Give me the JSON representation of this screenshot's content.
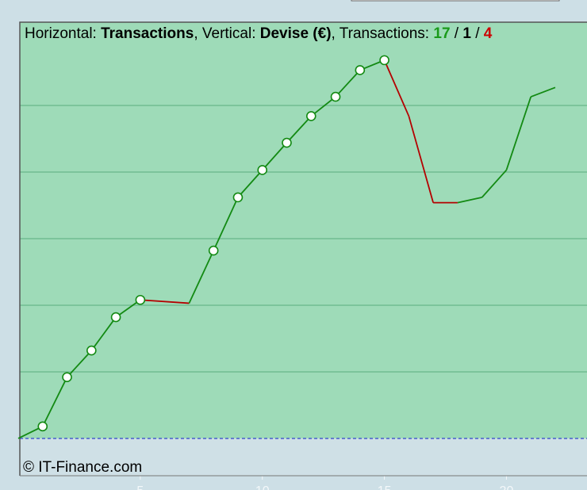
{
  "chart_data": {
    "type": "line",
    "title": [
      {
        "text": "Horizontal: "
      },
      {
        "text": "Transactions",
        "bold": true
      },
      {
        "text": ", Vertical: "
      },
      {
        "text": "Devise (€)",
        "bold": true
      },
      {
        "text": ", Transactions: "
      },
      {
        "text": "17",
        "bold": true,
        "color": "#1a9a1a"
      },
      {
        "text": " / "
      },
      {
        "text": "1",
        "bold": true
      },
      {
        "text": " / "
      },
      {
        "text": "4",
        "bold": true,
        "color": "#cc0000"
      }
    ],
    "credit": "© IT-Finance.com",
    "x": [
      0,
      1,
      2,
      3,
      4,
      5,
      7,
      8,
      9,
      10,
      11,
      12,
      13,
      14,
      15,
      16,
      17,
      18,
      19,
      20,
      21,
      22
    ],
    "series": [
      {
        "color": "#138a13",
        "loss_color": "#b40000",
        "values": [
          0,
          0.18,
          0.92,
          1.32,
          1.82,
          2.08,
          2.03,
          2.82,
          3.62,
          4.03,
          4.44,
          4.84,
          5.13,
          5.53,
          5.68,
          4.84,
          3.54,
          3.54,
          3.62,
          4.03,
          5.13,
          5.27
        ],
        "segment_loss": [
          false,
          false,
          false,
          false,
          false,
          true,
          false,
          false,
          false,
          false,
          false,
          false,
          false,
          false,
          true,
          true,
          true,
          false,
          false,
          false,
          false
        ],
        "markers": [
          false,
          true,
          true,
          true,
          true,
          true,
          false,
          true,
          true,
          true,
          true,
          true,
          true,
          true,
          true,
          false,
          false,
          false,
          false,
          false,
          false,
          false
        ]
      }
    ],
    "xlim": [
      0,
      23.3
    ],
    "ylim": [
      -0.56,
      6.25
    ],
    "xticks": [
      5,
      10,
      15,
      20
    ],
    "yticks": [
      0,
      1,
      2,
      3,
      4,
      5
    ],
    "grid": true,
    "plot_color": "#9edbb8",
    "below_zero_color": "#cfe0e6",
    "grid_color": "#7cc49b",
    "zero_line_color": "#3344cc"
  }
}
